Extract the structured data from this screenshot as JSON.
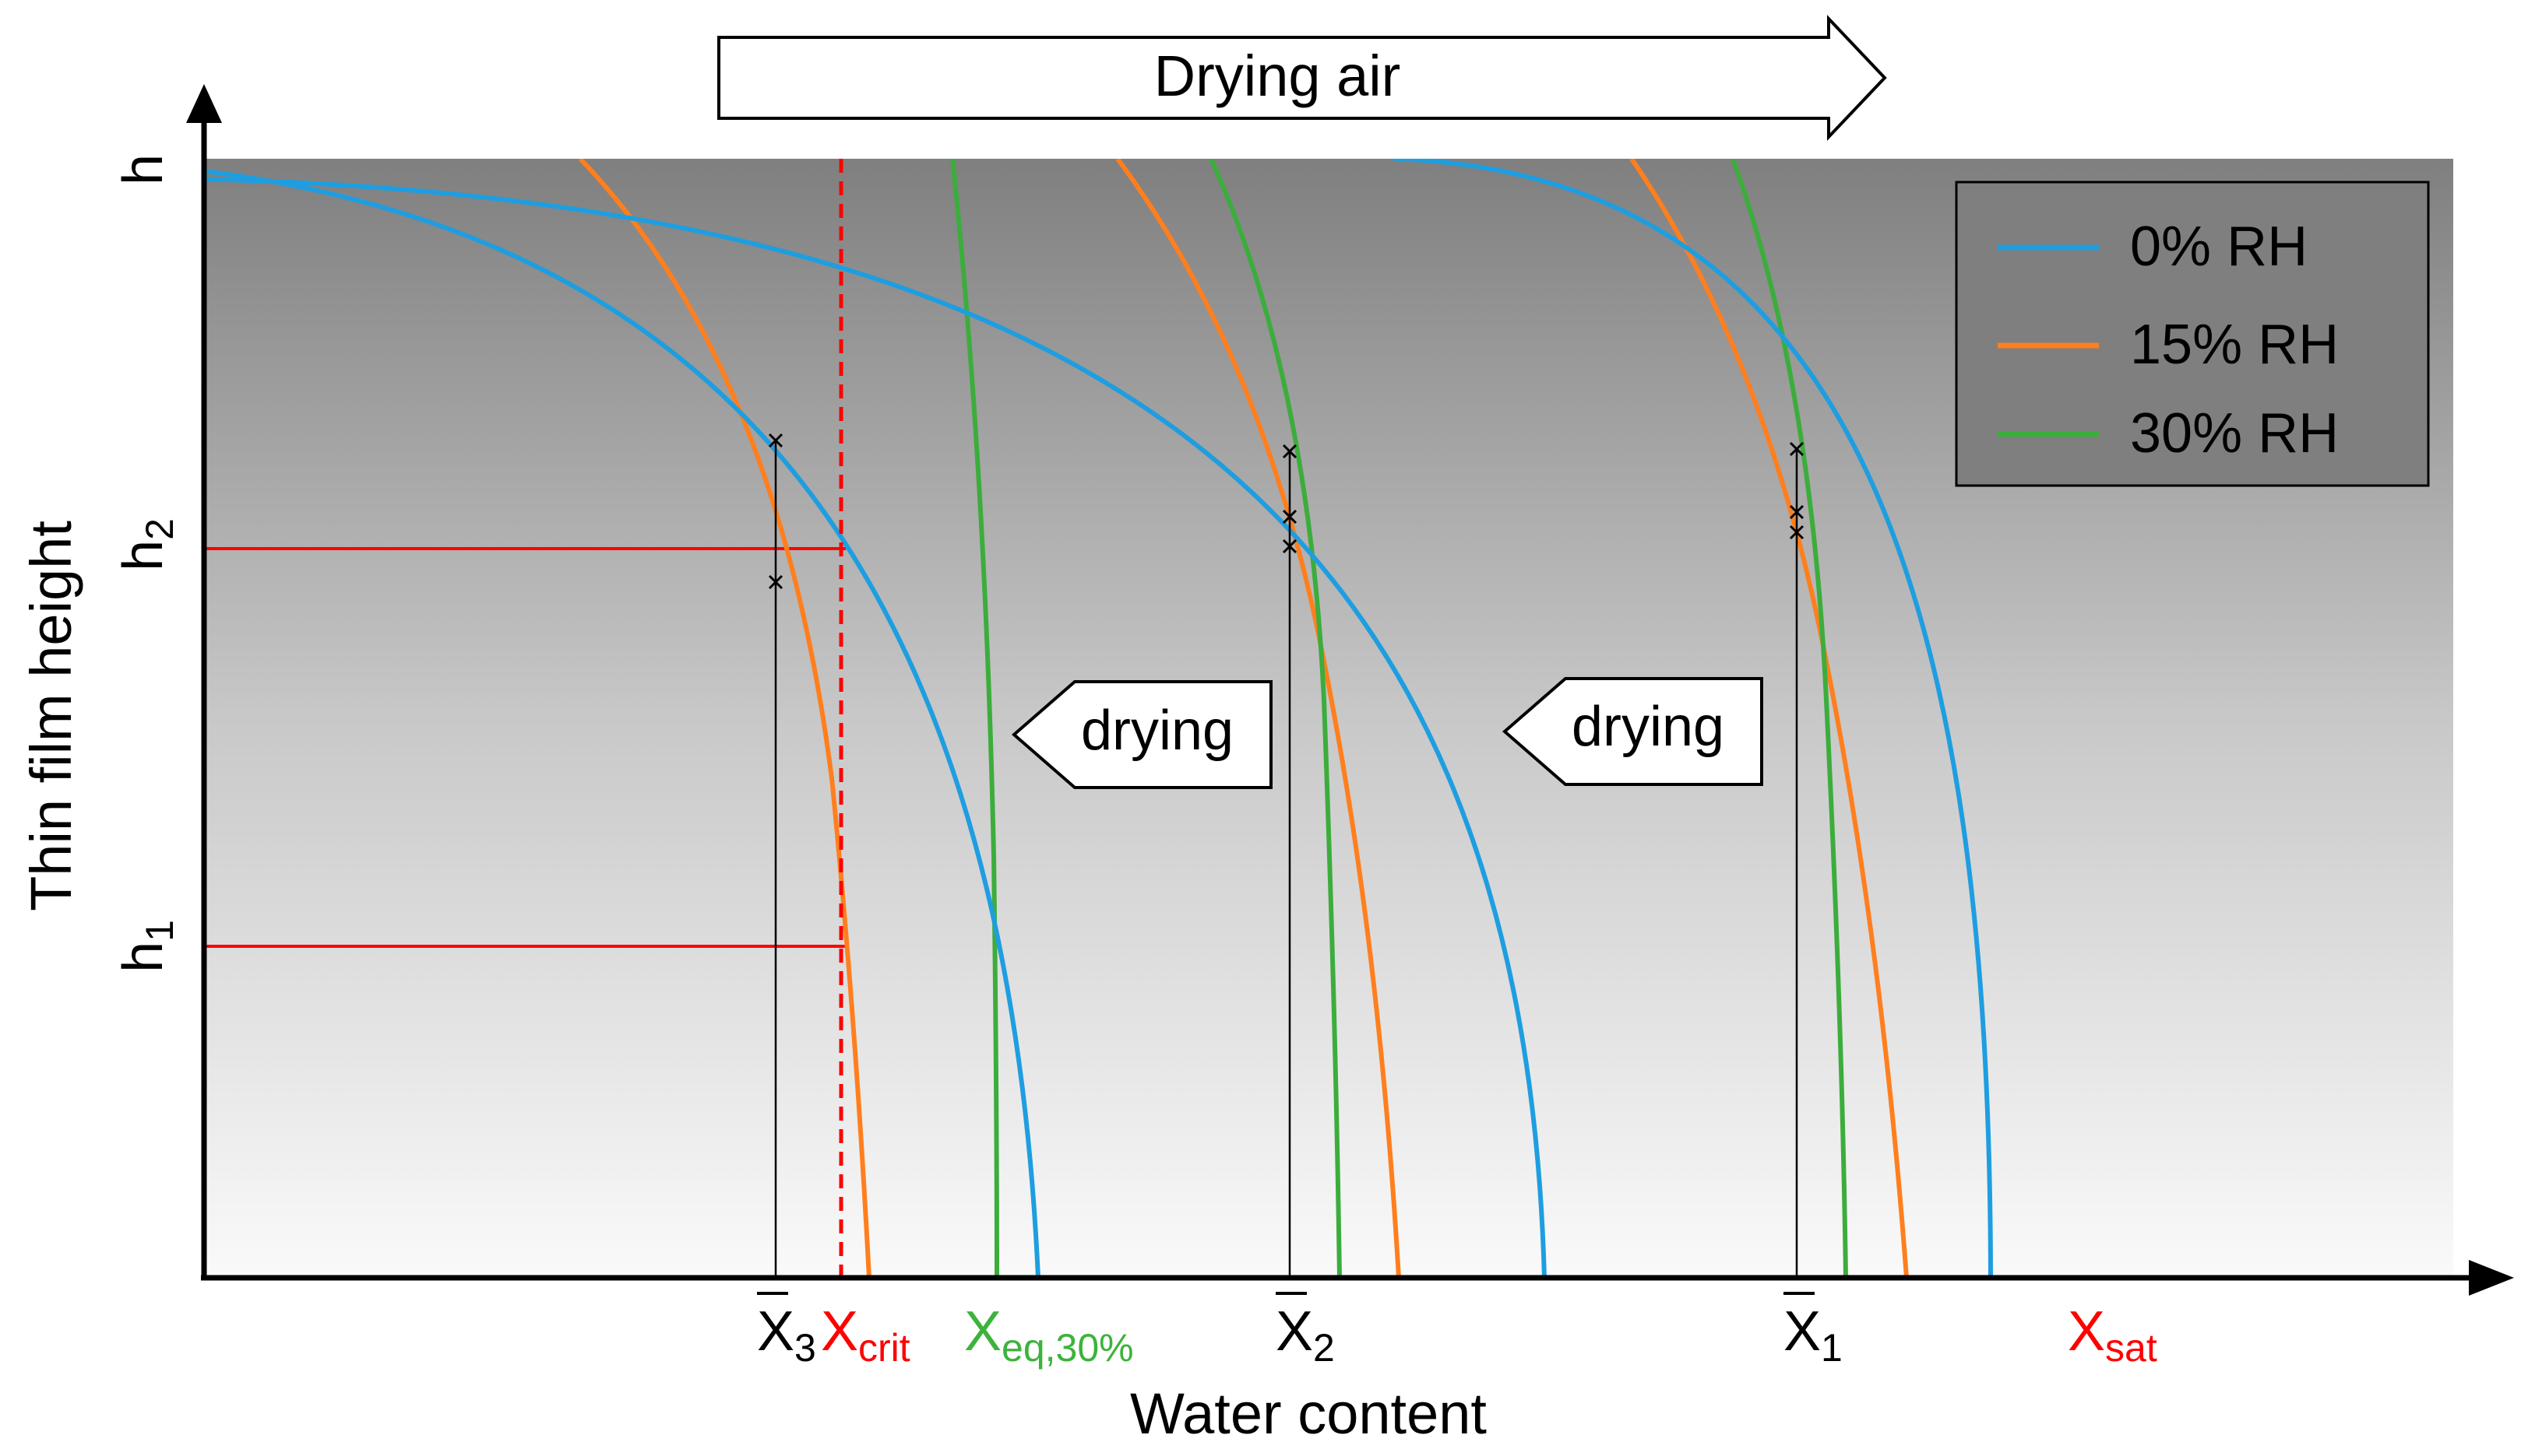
{
  "title_arrow": {
    "label": "Drying air"
  },
  "axes": {
    "y_label": "Thin film height",
    "x_label": "Water content",
    "y_ticks": [
      {
        "main": "h",
        "sub": ""
      },
      {
        "main": "h",
        "sub": "2"
      },
      {
        "main": "h",
        "sub": "1"
      }
    ],
    "x_ticks": [
      {
        "main": "X",
        "sub": "3",
        "bar": true,
        "color": "#000000"
      },
      {
        "main": "X",
        "sub": "crit",
        "bar": false,
        "color": "#ff0000"
      },
      {
        "main": "X",
        "sub": "eq,30%",
        "bar": false,
        "color": "#3cb33c"
      },
      {
        "main": "X",
        "sub": "2",
        "bar": true,
        "color": "#000000"
      },
      {
        "main": "X",
        "sub": "1",
        "bar": true,
        "color": "#000000"
      },
      {
        "main": "X",
        "sub": "sat",
        "bar": false,
        "color": "#ff0000"
      }
    ]
  },
  "drying_labels": [
    "drying",
    "drying"
  ],
  "legend": {
    "entries": [
      {
        "label": "0% RH",
        "color": "#1e9ee0"
      },
      {
        "label": "15% RH",
        "color": "#ff7f1e"
      },
      {
        "label": "30% RH",
        "color": "#3cad3c"
      }
    ]
  },
  "colors": {
    "critical_line": "#ff0000",
    "axis": "#000000",
    "background_top": "#7f7f7f",
    "background_bottom": "#fafafa"
  }
}
